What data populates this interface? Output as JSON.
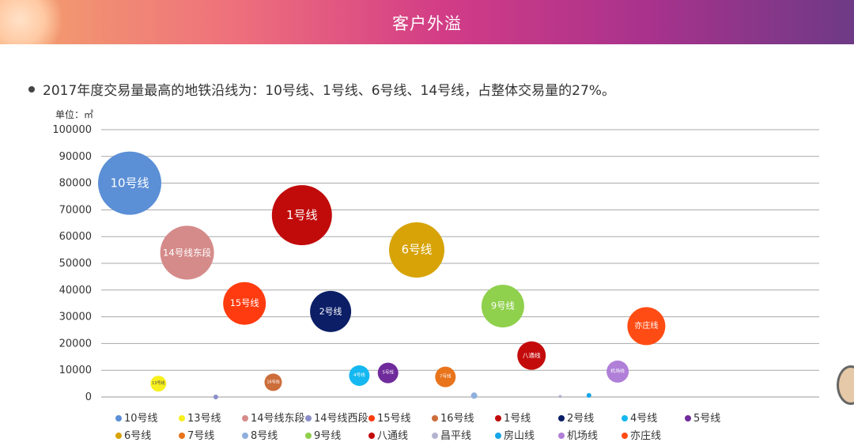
{
  "banner": {
    "title": "客户外溢"
  },
  "bullet": {
    "text": "2017年度交易量最高的地铁沿线为：10号线、1号线、6号线、14号线，占整体交易量的27%。"
  },
  "chart_data": {
    "type": "bubble",
    "unit_label": "单位：㎡",
    "ylim": [
      0,
      100000
    ],
    "y_ticks": [
      "0",
      "10000",
      "20000",
      "30000",
      "40000",
      "50000",
      "60000",
      "70000",
      "80000",
      "90000",
      "100000"
    ],
    "x_count": 21,
    "series": [
      {
        "name": "10号线",
        "x": 1,
        "value": 80000,
        "size": 40,
        "color": "#5b8fd6",
        "label": "10号线"
      },
      {
        "name": "13号线",
        "x": 2,
        "value": 5000,
        "size": 10,
        "color": "#f8f01e",
        "label": "13号线"
      },
      {
        "name": "14号线东段",
        "x": 3,
        "value": 54000,
        "size": 34,
        "color": "#d58b8a",
        "label": "14号线东段"
      },
      {
        "name": "14号线西段",
        "x": 4,
        "value": 0,
        "size": 3,
        "color": "#8b8ec8",
        "label": ""
      },
      {
        "name": "15号线",
        "x": 5,
        "value": 35000,
        "size": 27,
        "color": "#ff3b0f",
        "label": "15号线"
      },
      {
        "name": "16号线",
        "x": 6,
        "value": 5500,
        "size": 11,
        "color": "#cc6d3a",
        "label": "16号线"
      },
      {
        "name": "1号线",
        "x": 7,
        "value": 68000,
        "size": 38,
        "color": "#c10b0b",
        "label": "1号线"
      },
      {
        "name": "2号线",
        "x": 8,
        "value": 32000,
        "size": 26,
        "color": "#0b1e66",
        "label": "2号线"
      },
      {
        "name": "4号线",
        "x": 9,
        "value": 8000,
        "size": 13,
        "color": "#15b8f0",
        "label": "4号线"
      },
      {
        "name": "5号线",
        "x": 10,
        "value": 9000,
        "size": 13,
        "color": "#6f2b9b",
        "label": "5号线"
      },
      {
        "name": "6号线",
        "x": 11,
        "value": 55000,
        "size": 35,
        "color": "#d7a307",
        "label": "6号线"
      },
      {
        "name": "7号线",
        "x": 12,
        "value": 7500,
        "size": 13,
        "color": "#e8741c",
        "label": "7号线"
      },
      {
        "name": "8号线",
        "x": 13,
        "value": 500,
        "size": 4,
        "color": "#8fb0dd",
        "label": ""
      },
      {
        "name": "9号线",
        "x": 14,
        "value": 34000,
        "size": 27,
        "color": "#8fd04c",
        "label": "9号线"
      },
      {
        "name": "八通线",
        "x": 15,
        "value": 15500,
        "size": 18,
        "color": "#c40b0b",
        "label": "八通线"
      },
      {
        "name": "昌平线",
        "x": 16,
        "value": 200,
        "size": 2,
        "color": "#b4b4d2",
        "label": ""
      },
      {
        "name": "房山线",
        "x": 17,
        "value": 600,
        "size": 3,
        "color": "#16a5e6",
        "label": ""
      },
      {
        "name": "机场线",
        "x": 18,
        "value": 9500,
        "size": 14,
        "color": "#b07fd8",
        "label": "机场线"
      },
      {
        "name": "亦庄线",
        "x": 19,
        "value": 26500,
        "size": 24,
        "color": "#ff4c14",
        "label": "亦庄线"
      }
    ]
  }
}
